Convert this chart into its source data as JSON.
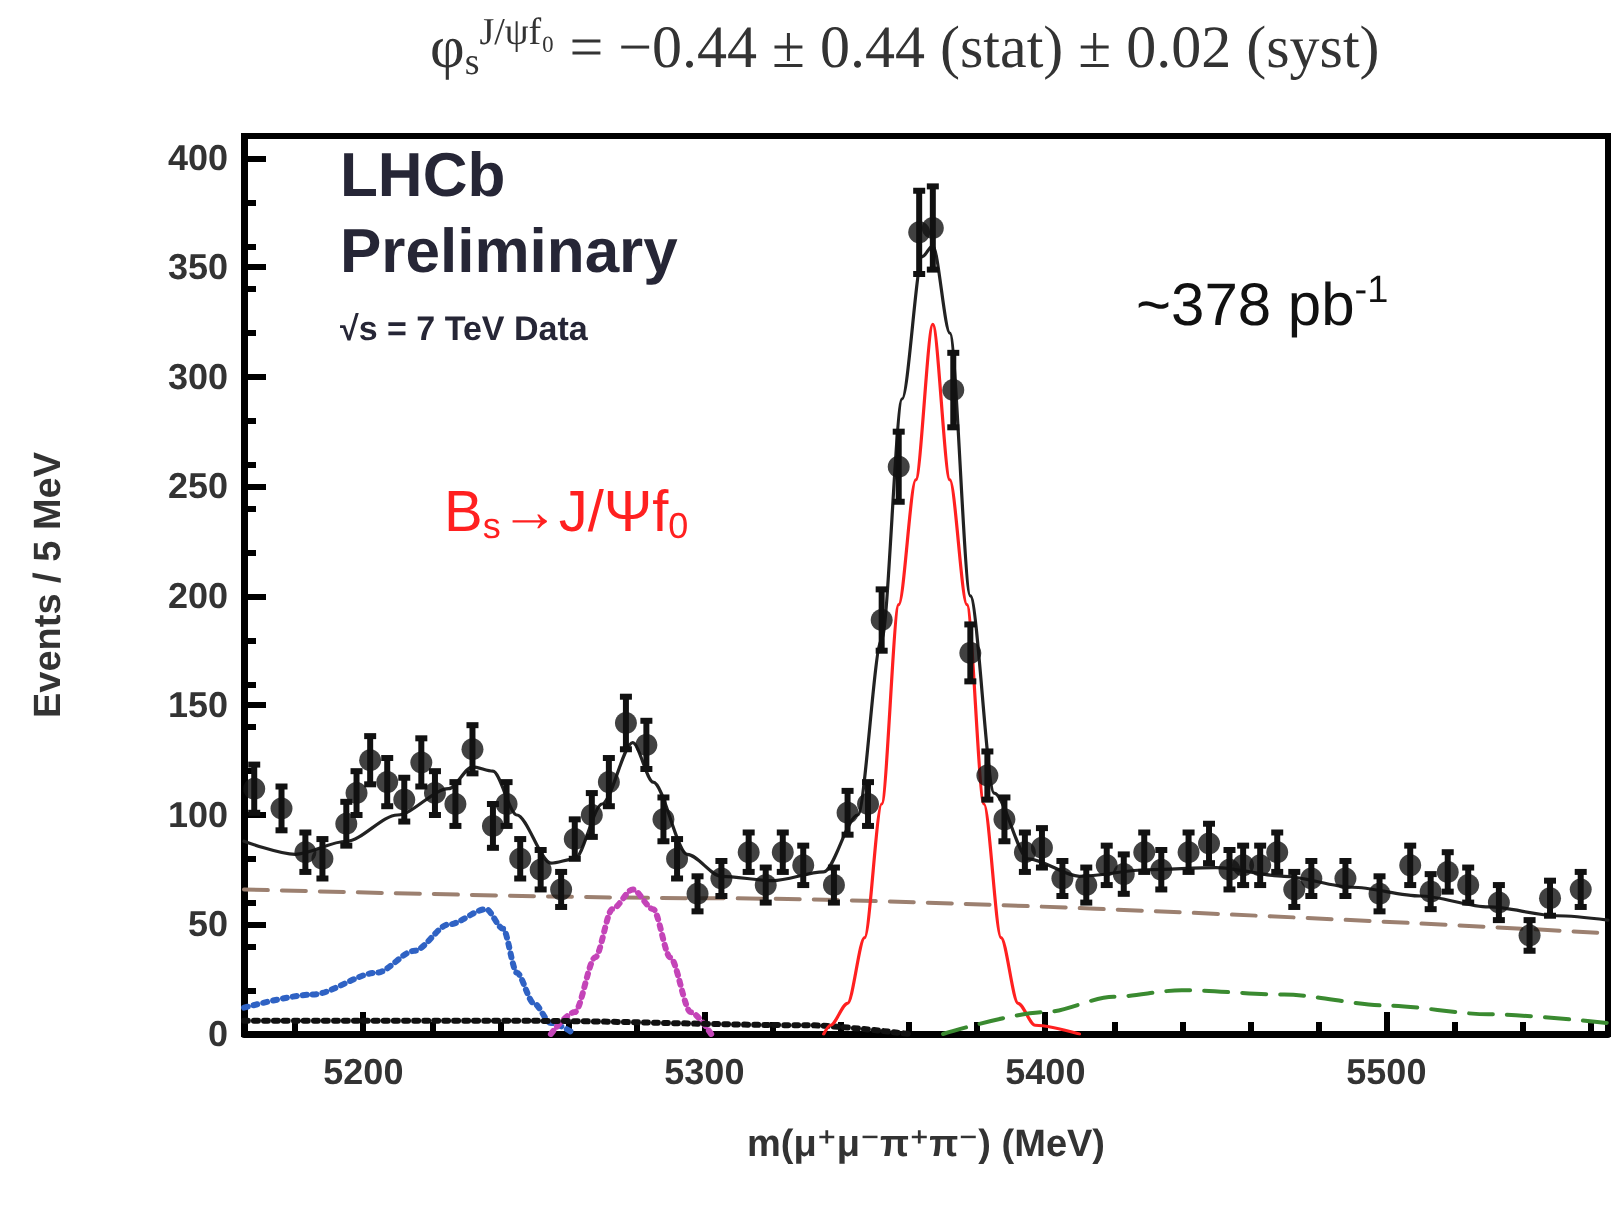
{
  "chart_data": {
    "type": "line",
    "title": "φ$_{s}$$^{J/ψf₀}$ = −0.44 ± 0.44 (stat) ± 0.02 (syst)",
    "xlabel": "m(μ⁺μ⁻π⁺π⁻) (MeV)",
    "ylabel": "Events / 5 MeV",
    "annotations": [
      "LHCb",
      "Preliminary",
      "√s = 7 TeV Data",
      "~378 pb$^{-1}$",
      "B$_{s}$→J/Ψf$_{0}$"
    ],
    "xlim": [
      5165,
      5565
    ],
    "xticks": [
      5200,
      5300,
      5400,
      5500
    ],
    "ylim": [
      0,
      410
    ],
    "yticks": [
      0,
      50,
      100,
      150,
      200,
      250,
      300,
      350,
      400
    ],
    "grid": false,
    "series": [
      {
        "type": "scatter",
        "color": "#111111",
        "marker": "circle",
        "x": [
          5168,
          5176,
          5183,
          5188,
          5195,
          5198,
          5202,
          5207,
          5212,
          5217,
          5221,
          5227,
          5232,
          5238,
          5242,
          5246,
          5252,
          5258,
          5262,
          5267,
          5272,
          5277,
          5283,
          5288,
          5292,
          5298,
          5305,
          5313,
          5318,
          5323,
          5329,
          5338,
          5342,
          5348,
          5352,
          5357,
          5363,
          5367,
          5373,
          5378,
          5383,
          5388,
          5394,
          5399,
          5405,
          5412,
          5418,
          5423,
          5429,
          5434,
          5442,
          5448,
          5454,
          5458,
          5463,
          5468,
          5473,
          5478,
          5488,
          5498,
          5507,
          5513,
          5518,
          5524,
          5533,
          5542,
          5548,
          5557
        ],
        "values": [
          112,
          103,
          83,
          80,
          96,
          110,
          125,
          115,
          107,
          124,
          110,
          105,
          130,
          95,
          105,
          80,
          75,
          66,
          89,
          100,
          115,
          142,
          132,
          98,
          80,
          64,
          71,
          83,
          68,
          83,
          77,
          68,
          101,
          105,
          189,
          259,
          366,
          368,
          294,
          174,
          118,
          98,
          83,
          85,
          71,
          68,
          77,
          73,
          83,
          75,
          83,
          87,
          75,
          77,
          77,
          83,
          66,
          71,
          71,
          64,
          77,
          65,
          74,
          68,
          60,
          45,
          62,
          66
        ],
        "errors": [
          11,
          10,
          9,
          9,
          10,
          10,
          11,
          11,
          10,
          11,
          10,
          10,
          11,
          10,
          10,
          9,
          9,
          8,
          9,
          10,
          11,
          12,
          11,
          10,
          9,
          8,
          8,
          9,
          8,
          9,
          9,
          8,
          10,
          10,
          14,
          16,
          19,
          19,
          17,
          13,
          11,
          10,
          9,
          9,
          8,
          8,
          9,
          9,
          9,
          9,
          9,
          9,
          9,
          9,
          9,
          9,
          8,
          8,
          8,
          8,
          9,
          8,
          9,
          8,
          8,
          7,
          8,
          8
        ]
      },
      {
        "color": "#222222",
        "line_style": "solid",
        "x": [
          5165,
          5180,
          5195,
          5210,
          5225,
          5232,
          5238,
          5245,
          5255,
          5262,
          5270,
          5279,
          5285,
          5295,
          5305,
          5320,
          5335,
          5345,
          5352,
          5358,
          5364,
          5367,
          5372,
          5378,
          5385,
          5395,
          5410,
          5430,
          5450,
          5470,
          5490,
          5510,
          5530,
          5550,
          5565
        ],
        "values": [
          88,
          82,
          88,
          100,
          112,
          122,
          120,
          100,
          78,
          80,
          105,
          133,
          115,
          82,
          72,
          70,
          74,
          100,
          180,
          290,
          355,
          360,
          320,
          200,
          110,
          80,
          72,
          75,
          76,
          72,
          67,
          63,
          58,
          54,
          52
        ]
      },
      {
        "color": "#9c8070",
        "line_style": "dashed",
        "x": [
          5165,
          5300,
          5565
        ],
        "values": [
          66,
          62,
          46
        ]
      },
      {
        "color": "#2f62c4",
        "line_style": "dotted",
        "x": [
          5165,
          5185,
          5204,
          5215,
          5225,
          5236,
          5241,
          5245,
          5250,
          5255,
          5262
        ],
        "values": [
          12,
          18,
          28,
          38,
          50,
          57,
          48,
          28,
          14,
          5,
          0
        ]
      },
      {
        "color": "#c444b8",
        "line_style": "dotted",
        "x": [
          5255,
          5262,
          5268,
          5273,
          5279,
          5285,
          5290,
          5296,
          5302
        ],
        "values": [
          0,
          10,
          35,
          57,
          66,
          57,
          35,
          10,
          0
        ]
      },
      {
        "color": "#111111",
        "line_style": "dotted",
        "x": [
          5165,
          5250,
          5330,
          5360
        ],
        "values": [
          6,
          6,
          4,
          0
        ]
      },
      {
        "color": "#ff2020",
        "line_style": "solid",
        "x": [
          5335,
          5337,
          5342,
          5347,
          5352,
          5357,
          5362,
          5367,
          5372,
          5377,
          5382,
          5387,
          5392,
          5397,
          5410
        ],
        "values": [
          0,
          4,
          14,
          44,
          105,
          196,
          253,
          324,
          253,
          196,
          105,
          44,
          14,
          4,
          0
        ]
      },
      {
        "color": "#3a8a30",
        "line_style": "dashed",
        "x": [
          5370,
          5400,
          5420,
          5440,
          5470,
          5500,
          5530,
          5565
        ],
        "values": [
          0,
          10,
          17,
          20,
          18,
          13,
          9,
          5
        ]
      }
    ]
  }
}
